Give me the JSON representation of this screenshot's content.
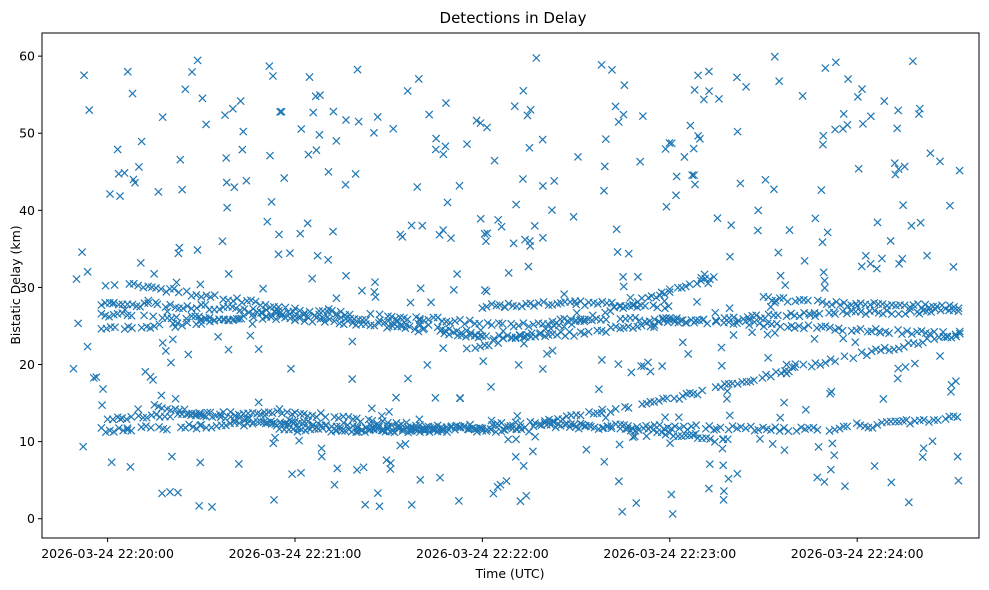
{
  "chart_data": {
    "type": "scatter",
    "title": "Detections in Delay",
    "xlabel": "Time (UTC)",
    "ylabel": "Bistatic Delay (km)",
    "marker": "x",
    "color": "#1f77b4",
    "grid": false,
    "xlim": [
      "2026-03-24 22:19:39",
      "2026-03-24 22:24:39"
    ],
    "ylim": [
      -2.5,
      63
    ],
    "x_ticks": [
      "2026-03-24 22:20:00",
      "2026-03-24 22:21:00",
      "2026-03-24 22:22:00",
      "2026-03-24 22:23:00",
      "2026-03-24 22:24:00"
    ],
    "y_ticks": [
      0,
      10,
      20,
      30,
      40,
      50,
      60
    ],
    "x_range": [
      "2026-03-24 22:19:49",
      "2026-03-24 22:24:33"
    ],
    "tracks": [
      {
        "x": [
          "2026-03-24 22:20:15",
          "2026-03-24 22:20:50",
          "2026-03-24 22:21:20",
          "2026-03-24 22:22:00",
          "2026-03-24 22:22:40",
          "2026-03-24 22:23:15",
          "2026-03-24 22:23:50",
          "2026-03-24 22:24:33"
        ],
        "y": [
          14.5,
          12.5,
          11.5,
          11.8,
          12.0,
          11.8,
          11.5,
          13.2
        ]
      },
      {
        "x": [
          "2026-03-24 22:19:58",
          "2026-03-24 22:20:30",
          "2026-03-24 22:21:00",
          "2026-03-24 22:21:30",
          "2026-03-24 22:21:50"
        ],
        "y": [
          11.5,
          12.0,
          12.5,
          11.8,
          11.3
        ]
      },
      {
        "x": [
          "2026-03-24 22:20:00",
          "2026-03-24 22:20:30",
          "2026-03-24 22:21:00",
          "2026-03-24 22:21:40",
          "2026-03-24 22:22:00",
          "2026-03-24 22:22:15"
        ],
        "y": [
          13.0,
          13.5,
          13.8,
          12.0,
          11.5,
          11.5
        ]
      },
      {
        "x": [
          "2026-03-24 22:20:55",
          "2026-03-24 22:21:40",
          "2026-03-24 22:22:20",
          "2026-03-24 22:23:00",
          "2026-03-24 22:23:40",
          "2026-03-24 22:24:33"
        ],
        "y": [
          11.5,
          11.5,
          12.5,
          15.5,
          19.5,
          24.0
        ]
      },
      {
        "x": [
          "2026-03-24 22:19:58",
          "2026-03-24 22:20:30",
          "2026-03-24 22:21:00",
          "2026-03-24 22:21:40",
          "2026-03-24 22:22:10",
          "2026-03-24 22:22:30",
          "2026-03-24 22:23:00",
          "2026-03-24 22:23:40",
          "2026-03-24 22:24:33"
        ],
        "y": [
          24.5,
          25.5,
          27.0,
          26.0,
          25.0,
          25.8,
          25.8,
          25.0,
          23.8
        ]
      },
      {
        "x": [
          "2026-03-24 22:19:58",
          "2026-03-24 22:20:30",
          "2026-03-24 22:21:00",
          "2026-03-24 22:21:30",
          "2026-03-24 22:22:00",
          "2026-03-24 22:22:30",
          "2026-03-24 22:23:00",
          "2026-03-24 22:23:45",
          "2026-03-24 22:24:33"
        ],
        "y": [
          26.5,
          26.0,
          26.0,
          25.0,
          23.5,
          24.0,
          25.5,
          26.5,
          27.0
        ]
      },
      {
        "x": [
          "2026-03-24 22:19:58",
          "2026-03-24 22:20:30",
          "2026-03-24 22:21:00",
          "2026-03-24 22:21:40",
          "2026-03-24 22:22:00"
        ],
        "y": [
          27.8,
          27.5,
          26.5,
          25.0,
          24.0
        ]
      },
      {
        "x": [
          "2026-03-24 22:20:07",
          "2026-03-24 22:20:30",
          "2026-03-24 22:20:55"
        ],
        "y": [
          30.5,
          29.0,
          27.5
        ]
      },
      {
        "x": [
          "2026-03-24 22:21:55",
          "2026-03-24 22:22:30",
          "2026-03-24 22:23:00",
          "2026-03-24 22:23:15"
        ],
        "y": [
          22.0,
          25.5,
          29.5,
          31.5
        ]
      },
      {
        "x": [
          "2026-03-24 22:22:00",
          "2026-03-24 22:22:30",
          "2026-03-24 22:23:00"
        ],
        "y": [
          27.5,
          28.0,
          27.5
        ]
      },
      {
        "x": [
          "2026-03-24 22:23:30",
          "2026-03-24 22:24:00",
          "2026-03-24 22:24:33"
        ],
        "y": [
          28.5,
          27.8,
          27.5
        ]
      },
      {
        "x": [
          "2026-03-24 22:22:20",
          "2026-03-24 22:22:50",
          "2026-03-24 22:23:20"
        ],
        "y": [
          12.5,
          11.5,
          10.0
        ]
      }
    ],
    "scatter_count": 480,
    "scatter_y_range": [
      0.5,
      60
    ]
  }
}
